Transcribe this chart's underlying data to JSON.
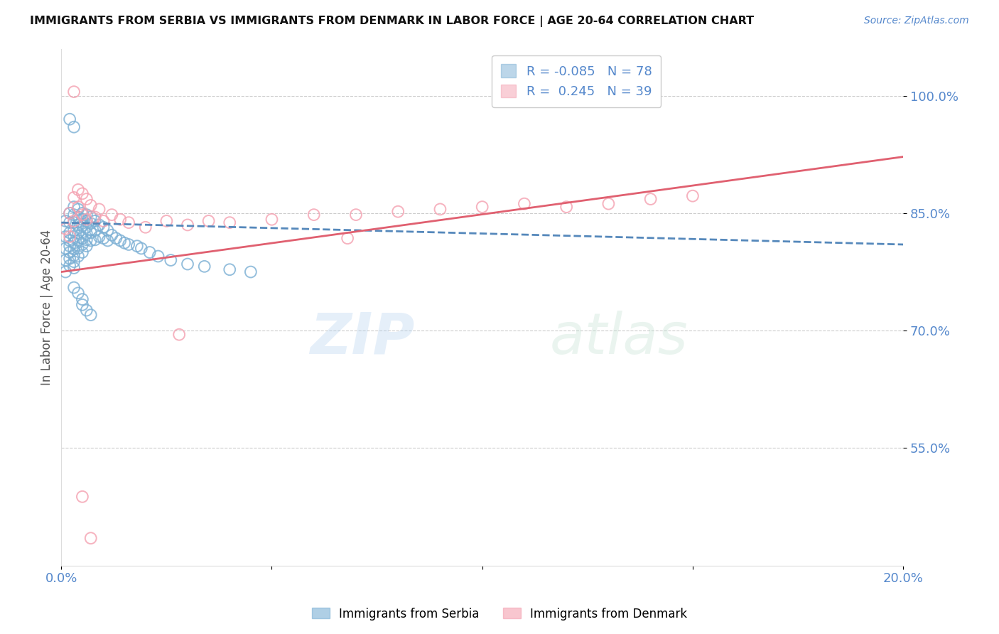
{
  "title": "IMMIGRANTS FROM SERBIA VS IMMIGRANTS FROM DENMARK IN LABOR FORCE | AGE 20-64 CORRELATION CHART",
  "source": "Source: ZipAtlas.com",
  "ylabel": "In Labor Force | Age 20-64",
  "xlim": [
    0.0,
    0.2
  ],
  "ylim": [
    0.4,
    1.06
  ],
  "yticks": [
    0.55,
    0.7,
    0.85,
    1.0
  ],
  "ytick_labels": [
    "55.0%",
    "70.0%",
    "85.0%",
    "100.0%"
  ],
  "xticks": [
    0.0,
    0.05,
    0.1,
    0.15,
    0.2
  ],
  "xtick_labels": [
    "0.0%",
    "",
    "",
    "",
    "20.0%"
  ],
  "serbia_color": "#7BAFD4",
  "denmark_color": "#F4A0B0",
  "serbia_trend_color": "#5588BB",
  "denmark_trend_color": "#E06070",
  "serbia_R": -0.085,
  "serbia_N": 78,
  "denmark_R": 0.245,
  "denmark_N": 39,
  "serbia_label": "Immigrants from Serbia",
  "denmark_label": "Immigrants from Denmark",
  "watermark_text": "ZIPatlas",
  "background_color": "#ffffff",
  "grid_color": "#cccccc",
  "axis_color": "#5588CC",
  "serbia_x": [
    0.001,
    0.001,
    0.001,
    0.001,
    0.001,
    0.002,
    0.002,
    0.002,
    0.002,
    0.002,
    0.002,
    0.002,
    0.002,
    0.003,
    0.003,
    0.003,
    0.003,
    0.003,
    0.003,
    0.003,
    0.003,
    0.003,
    0.003,
    0.004,
    0.004,
    0.004,
    0.004,
    0.004,
    0.004,
    0.004,
    0.005,
    0.005,
    0.005,
    0.005,
    0.005,
    0.005,
    0.005,
    0.006,
    0.006,
    0.006,
    0.006,
    0.006,
    0.006,
    0.007,
    0.007,
    0.007,
    0.007,
    0.008,
    0.008,
    0.008,
    0.009,
    0.009,
    0.01,
    0.01,
    0.011,
    0.011,
    0.012,
    0.013,
    0.014,
    0.015,
    0.016,
    0.018,
    0.019,
    0.021,
    0.023,
    0.026,
    0.03,
    0.034,
    0.04,
    0.045,
    0.002,
    0.003,
    0.003,
    0.004,
    0.005,
    0.005,
    0.006,
    0.007
  ],
  "serbia_y": [
    0.84,
    0.82,
    0.805,
    0.79,
    0.775,
    0.85,
    0.838,
    0.825,
    0.815,
    0.808,
    0.8,
    0.792,
    0.783,
    0.858,
    0.848,
    0.838,
    0.828,
    0.82,
    0.812,
    0.804,
    0.796,
    0.788,
    0.78,
    0.855,
    0.845,
    0.835,
    0.825,
    0.815,
    0.805,
    0.795,
    0.85,
    0.842,
    0.834,
    0.826,
    0.818,
    0.81,
    0.8,
    0.848,
    0.84,
    0.832,
    0.824,
    0.816,
    0.808,
    0.845,
    0.837,
    0.825,
    0.815,
    0.84,
    0.828,
    0.816,
    0.835,
    0.82,
    0.832,
    0.818,
    0.828,
    0.815,
    0.822,
    0.818,
    0.815,
    0.812,
    0.81,
    0.808,
    0.805,
    0.8,
    0.795,
    0.79,
    0.785,
    0.782,
    0.778,
    0.775,
    0.97,
    0.96,
    0.755,
    0.748,
    0.74,
    0.733,
    0.726,
    0.72
  ],
  "denmark_x": [
    0.001,
    0.002,
    0.002,
    0.003,
    0.003,
    0.004,
    0.004,
    0.005,
    0.005,
    0.006,
    0.006,
    0.007,
    0.008,
    0.009,
    0.01,
    0.012,
    0.014,
    0.016,
    0.02,
    0.025,
    0.03,
    0.035,
    0.04,
    0.05,
    0.06,
    0.07,
    0.08,
    0.09,
    0.1,
    0.11,
    0.12,
    0.13,
    0.14,
    0.15,
    0.003,
    0.005,
    0.007,
    0.028,
    0.068
  ],
  "denmark_y": [
    0.83,
    0.85,
    0.82,
    0.87,
    0.84,
    0.88,
    0.858,
    0.875,
    0.848,
    0.868,
    0.842,
    0.86,
    0.845,
    0.855,
    0.84,
    0.848,
    0.842,
    0.838,
    0.832,
    0.84,
    0.835,
    0.84,
    0.838,
    0.842,
    0.848,
    0.848,
    0.852,
    0.855,
    0.858,
    0.862,
    0.858,
    0.862,
    0.868,
    0.872,
    1.005,
    0.488,
    0.435,
    0.695,
    0.818
  ],
  "serbia_trend": [
    0.838,
    0.81
  ],
  "denmark_trend": [
    0.775,
    0.922
  ]
}
